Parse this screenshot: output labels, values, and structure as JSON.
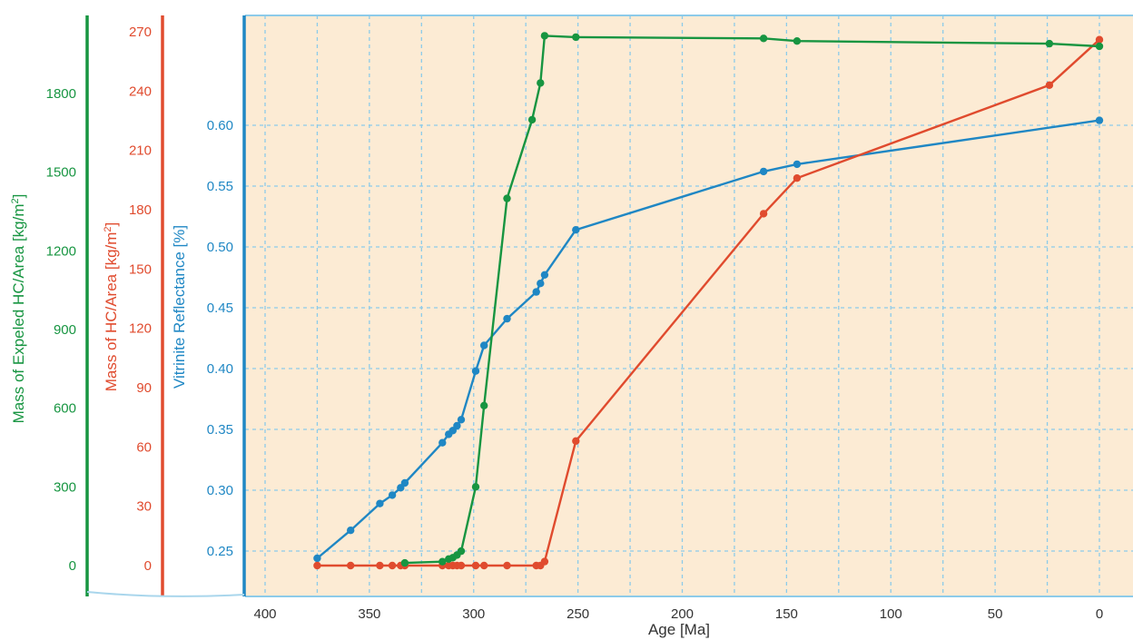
{
  "chart_data": {
    "type": "line",
    "xlabel": "Age [Ma]",
    "xlim": [
      410,
      0
    ],
    "x_ticks": [
      400,
      350,
      300,
      250,
      200,
      150,
      100,
      50,
      0
    ],
    "grid": true,
    "colors": {
      "plot_background": "#fcebd4",
      "grid": "#8ccbe9",
      "reflectance": "#1f87c4",
      "mass_hc": "#e04b2e",
      "mass_expelled": "#179541"
    },
    "axes": [
      {
        "id": "reflectance",
        "label": "Vitrinite Reflectance [%]",
        "lim": [
          0.232,
          0.622
        ],
        "ticks": [
          0.25,
          0.3,
          0.35,
          0.4,
          0.45,
          0.5,
          0.55,
          0.6
        ],
        "tick_labels": [
          "0.25",
          "0.30",
          "0.35",
          "0.40",
          "0.45",
          "0.50",
          "0.55",
          "0.60"
        ]
      },
      {
        "id": "mass_hc",
        "label_main": "Mass of HC/Area [kg/m",
        "label_sup": "2",
        "label_end": "]",
        "lim": [
          -7,
          278
        ],
        "ticks": [
          0,
          30,
          60,
          90,
          120,
          150,
          180,
          210,
          240,
          270
        ],
        "tick_labels": [
          "0",
          "30",
          "60",
          "90",
          "120",
          "150",
          "180",
          "210",
          "240",
          "270"
        ]
      },
      {
        "id": "mass_expelled",
        "label_main": "Mass of Expeled HC/Area [kg/m",
        "label_sup": "2",
        "label_end": "]",
        "lim": [
          -50,
          1950
        ],
        "ticks": [
          0,
          300,
          600,
          900,
          1200,
          1500,
          1800
        ],
        "tick_labels": [
          "0",
          "300",
          "600",
          "900",
          "1200",
          "1500",
          "1800"
        ]
      }
    ],
    "series": [
      {
        "axis": "reflectance",
        "x": [
          375,
          359,
          345,
          339,
          335,
          333,
          315,
          312,
          310,
          308,
          306,
          299,
          295,
          284,
          270,
          268,
          266,
          251,
          161,
          145,
          0
        ],
        "y": [
          0.244,
          0.267,
          0.289,
          0.296,
          0.302,
          0.306,
          0.339,
          0.346,
          0.349,
          0.353,
          0.358,
          0.398,
          0.419,
          0.441,
          0.463,
          0.47,
          0.477,
          0.514,
          0.562,
          0.568,
          0.604
        ]
      },
      {
        "axis": "mass_hc",
        "x": [
          375,
          359,
          345,
          339,
          335,
          333,
          315,
          312,
          310,
          308,
          306,
          299,
          295,
          284,
          270,
          268,
          266,
          251,
          161,
          145,
          24,
          0
        ],
        "y": [
          0,
          0,
          0,
          0,
          0,
          0,
          0,
          0,
          0,
          0,
          0,
          0,
          0,
          0,
          0,
          0,
          2,
          63,
          178,
          196,
          243,
          266
        ]
      },
      {
        "axis": "mass_expelled",
        "x": [
          333,
          315,
          312,
          310,
          308,
          306,
          299,
          295,
          284,
          272,
          268,
          266,
          251,
          161,
          145,
          24,
          0
        ],
        "y": [
          10,
          15,
          25,
          30,
          40,
          55,
          300,
          610,
          1400,
          1700,
          1840,
          2020,
          2015,
          2010,
          2000,
          1990,
          1980
        ]
      }
    ]
  }
}
